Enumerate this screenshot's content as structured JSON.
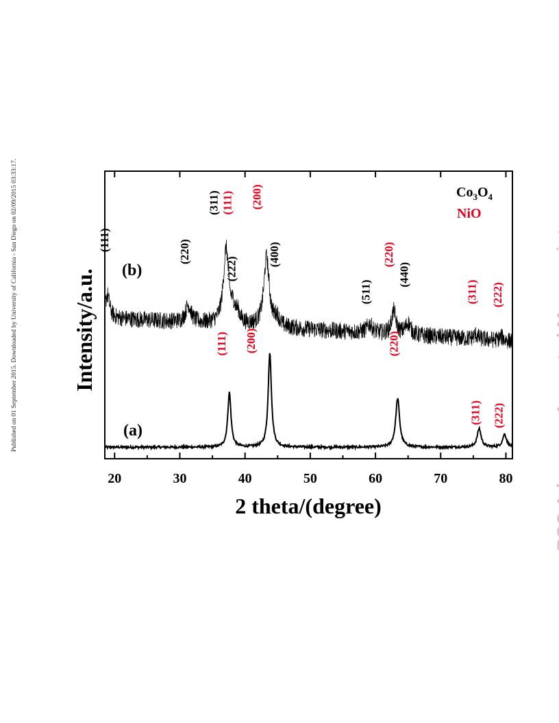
{
  "side_note": "Published on 01 September 2015. Downloaded by University of California - San Diego on 02/09/2015 03:33:17.",
  "watermark": "RSC Advances Accepted Manuscript",
  "colors": {
    "nio": "#e8001c",
    "co3o4": "#000000",
    "watermark": "#c9c9e2"
  },
  "chart_data": {
    "type": "line",
    "xlabel": "2 theta/(degree)",
    "ylabel": "Intensity/a.u.",
    "xlim": [
      18.5,
      81
    ],
    "ylim": [
      0,
      1
    ],
    "x_ticks": [
      20,
      30,
      40,
      50,
      60,
      70,
      80
    ],
    "y_ticks": "none",
    "legend": {
      "placement": "top-right",
      "entries": [
        {
          "base": "Co",
          "sub1": "3",
          "mid": "O",
          "sub2": "4",
          "color": "#000000"
        },
        {
          "text": "NiO",
          "color": "#e8001c"
        }
      ]
    },
    "series": [
      {
        "name": "(a)",
        "baseline": 0.04,
        "noise": 0.004,
        "peaks": [
          {
            "x": 37.6,
            "height": 0.19,
            "width": 0.3,
            "label": "(111)",
            "color": "#e8001c",
            "label_x": 37.0,
            "label_y": 0.4
          },
          {
            "x": 43.8,
            "height": 0.33,
            "width": 0.3,
            "label": "(200)",
            "color": "#e8001c",
            "label_x": 41.5,
            "label_y": 0.41
          },
          {
            "x": 63.4,
            "height": 0.17,
            "width": 0.36,
            "label": "(220)",
            "color": "#e8001c",
            "label_x": 63.4,
            "label_y": 0.4
          },
          {
            "x": 75.9,
            "height": 0.065,
            "width": 0.36,
            "label": "(311)",
            "color": "#e8001c",
            "label_x": 75.9,
            "label_y": 0.16
          },
          {
            "x": 79.8,
            "height": 0.045,
            "width": 0.36,
            "label": "(222)",
            "color": "#e8001c",
            "label_x": 79.5,
            "label_y": 0.15
          }
        ]
      },
      {
        "name": "(b)",
        "baseline": 0.49,
        "slope": -0.0013,
        "noise": 0.03,
        "peaks": [
          {
            "x": 18.9,
            "height": 0.08,
            "width": 0.4,
            "label": "(111)",
            "color": "#000000",
            "label_x": 19.0,
            "label_y": 0.76
          },
          {
            "x": 31.3,
            "height": 0.06,
            "width": 0.5,
            "label": "(220)",
            "color": "#000000",
            "label_x": 31.3,
            "label_y": 0.72
          },
          {
            "x": 37.1,
            "height": 0.26,
            "width": 0.5,
            "label": "(311)",
            "color": "#000000",
            "label_x": 35.8,
            "label_y": 0.89
          },
          {
            "x": 38.2,
            "height": 0.04,
            "width": 0.4,
            "label": "(111)",
            "color": "#e8001c",
            "label_x": 37.9,
            "label_y": 0.89
          },
          {
            "x": 38.9,
            "height": 0.03,
            "width": 0.4,
            "label": "(222)",
            "color": "#000000",
            "label_x": 38.5,
            "label_y": 0.66
          },
          {
            "x": 43.3,
            "height": 0.24,
            "width": 0.5,
            "label": "(200)",
            "color": "#e8001c",
            "label_x": 42.4,
            "label_y": 0.91
          },
          {
            "x": 44.9,
            "height": 0.03,
            "width": 0.4,
            "label": "(400)",
            "color": "#000000",
            "label_x": 45.1,
            "label_y": 0.71
          },
          {
            "x": 59.1,
            "height": 0.03,
            "width": 0.5,
            "label": "(511)",
            "color": "#000000",
            "label_x": 59.1,
            "label_y": 0.58
          },
          {
            "x": 62.8,
            "height": 0.08,
            "width": 0.4,
            "label": "(220)",
            "color": "#e8001c",
            "label_x": 62.6,
            "label_y": 0.71
          },
          {
            "x": 65.0,
            "height": 0.04,
            "width": 0.5,
            "label": "(440)",
            "color": "#000000",
            "label_x": 65.0,
            "label_y": 0.64
          },
          {
            "x": 75.4,
            "height": 0.015,
            "width": 0.4,
            "label": "(311)",
            "color": "#e8001c",
            "label_x": 75.4,
            "label_y": 0.58
          },
          {
            "x": 79.3,
            "height": 0.012,
            "width": 0.4,
            "label": "(222)",
            "color": "#e8001c",
            "label_x": 79.3,
            "label_y": 0.57
          }
        ]
      }
    ]
  }
}
